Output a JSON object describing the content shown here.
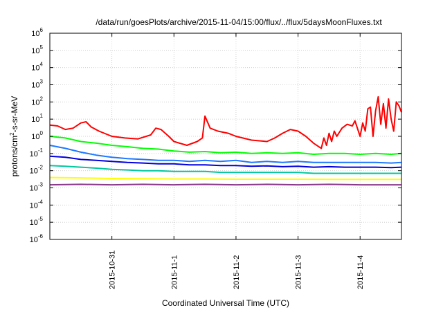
{
  "chart_data": {
    "type": "line",
    "title": "/data/run/goesPlots/archive/2015-11-04/15:00/flux/../flux/5daysMoonFluxes.txt",
    "xlabel": "Coordinated Universal Time (UTC)",
    "ylabel": {
      "base": "protons/cm",
      "sup": "2",
      "rest": "-s-sr-MeV"
    },
    "yscale": "log",
    "ylim": [
      1e-06,
      1000000.0
    ],
    "y_ticks": [
      {
        "base": "10",
        "exp": "-6",
        "value": 1e-06
      },
      {
        "base": "10",
        "exp": "-5",
        "value": 1e-05
      },
      {
        "base": "10",
        "exp": "-4",
        "value": 0.0001
      },
      {
        "base": "10",
        "exp": "-3",
        "value": 0.001
      },
      {
        "base": "10",
        "exp": "-2",
        "value": 0.01
      },
      {
        "base": "10",
        "exp": "-1",
        "value": 0.1
      },
      {
        "base": "10",
        "exp": "0",
        "value": 1
      },
      {
        "base": "10",
        "exp": "1",
        "value": 10
      },
      {
        "base": "10",
        "exp": "2",
        "value": 100
      },
      {
        "base": "10",
        "exp": "3",
        "value": 1000
      },
      {
        "base": "10",
        "exp": "4",
        "value": 10000
      },
      {
        "base": "10",
        "exp": "5",
        "value": 100000
      },
      {
        "base": "10",
        "exp": "6",
        "value": 1000000
      }
    ],
    "xlim": [
      "2015-10-30 00:00",
      "2015-11-04 16:00"
    ],
    "x_ticks": [
      {
        "label": "2015-10-31",
        "value": "2015-10-31 00:00"
      },
      {
        "label": "2015-11-1",
        "value": "2015-11-01 00:00"
      },
      {
        "label": "2015-11-2",
        "value": "2015-11-02 00:00"
      },
      {
        "label": "2015-11-3",
        "value": "2015-11-03 00:00"
      },
      {
        "label": "2015-11-4",
        "value": "2015-11-04 00:00"
      }
    ],
    "grid": true,
    "legend": "none",
    "series": [
      {
        "color": "#ff0000",
        "points": [
          [
            "2015-10-30 00:00",
            4.5
          ],
          [
            "2015-10-30 03:00",
            4.0
          ],
          [
            "2015-10-30 06:00",
            2.5
          ],
          [
            "2015-10-30 09:00",
            3.0
          ],
          [
            "2015-10-30 12:00",
            6.0
          ],
          [
            "2015-10-30 14:00",
            7.0
          ],
          [
            "2015-10-30 16:00",
            3.5
          ],
          [
            "2015-10-30 19:00",
            2.0
          ],
          [
            "2015-10-31 00:00",
            1.0
          ],
          [
            "2015-10-31 05:00",
            0.8
          ],
          [
            "2015-10-31 10:00",
            0.7
          ],
          [
            "2015-10-31 15:00",
            1.2
          ],
          [
            "2015-10-31 17:00",
            3.0
          ],
          [
            "2015-10-31 19:00",
            2.5
          ],
          [
            "2015-10-31 22:00",
            1.0
          ],
          [
            "2015-11-01 00:00",
            0.5
          ],
          [
            "2015-11-01 05:00",
            0.3
          ],
          [
            "2015-11-01 09:00",
            0.5
          ],
          [
            "2015-11-01 11:00",
            0.8
          ],
          [
            "2015-11-01 12:00",
            15.0
          ],
          [
            "2015-11-01 14:00",
            3.0
          ],
          [
            "2015-11-01 17:00",
            2.0
          ],
          [
            "2015-11-01 21:00",
            1.5
          ],
          [
            "2015-11-02 00:00",
            1.0
          ],
          [
            "2015-11-02 06:00",
            0.6
          ],
          [
            "2015-11-02 12:00",
            0.5
          ],
          [
            "2015-11-02 15:00",
            0.8
          ],
          [
            "2015-11-02 18:00",
            1.5
          ],
          [
            "2015-11-02 21:00",
            2.5
          ],
          [
            "2015-11-03 00:00",
            2.0
          ],
          [
            "2015-11-03 03:00",
            1.0
          ],
          [
            "2015-11-03 06:00",
            0.4
          ],
          [
            "2015-11-03 09:00",
            0.2
          ],
          [
            "2015-11-03 10:00",
            0.8
          ],
          [
            "2015-11-03 11:00",
            0.3
          ],
          [
            "2015-11-03 12:00",
            1.5
          ],
          [
            "2015-11-03 13:00",
            0.5
          ],
          [
            "2015-11-03 14:00",
            2.0
          ],
          [
            "2015-11-03 15:00",
            1.0
          ],
          [
            "2015-11-03 17:00",
            3.0
          ],
          [
            "2015-11-03 19:00",
            5.0
          ],
          [
            "2015-11-03 21:00",
            4.0
          ],
          [
            "2015-11-03 22:00",
            8.0
          ],
          [
            "2015-11-04 00:00",
            1.0
          ],
          [
            "2015-11-04 01:00",
            6.0
          ],
          [
            "2015-11-04 02:00",
            2.0
          ],
          [
            "2015-11-04 03:00",
            40.0
          ],
          [
            "2015-11-04 04:00",
            50.0
          ],
          [
            "2015-11-04 05:00",
            1.0
          ],
          [
            "2015-11-04 06:00",
            30.0
          ],
          [
            "2015-11-04 07:00",
            200.0
          ],
          [
            "2015-11-04 08:00",
            5.0
          ],
          [
            "2015-11-04 09:00",
            80.0
          ],
          [
            "2015-11-04 10:00",
            3.0
          ],
          [
            "2015-11-04 11:00",
            150.0
          ],
          [
            "2015-11-04 12:00",
            10.0
          ],
          [
            "2015-11-04 13:00",
            2.0
          ],
          [
            "2015-11-04 14:00",
            100.0
          ],
          [
            "2015-11-04 15:00",
            60.0
          ],
          [
            "2015-11-04 16:00",
            25.0
          ]
        ]
      },
      {
        "color": "#00ff00",
        "points": [
          [
            "2015-10-30 00:00",
            1.0
          ],
          [
            "2015-10-30 06:00",
            0.8
          ],
          [
            "2015-10-30 12:00",
            0.5
          ],
          [
            "2015-10-30 18:00",
            0.4
          ],
          [
            "2015-10-31 00:00",
            0.3
          ],
          [
            "2015-10-31 06:00",
            0.25
          ],
          [
            "2015-10-31 12:00",
            0.2
          ],
          [
            "2015-10-31 18:00",
            0.18
          ],
          [
            "2015-11-01 00:00",
            0.14
          ],
          [
            "2015-11-01 06:00",
            0.12
          ],
          [
            "2015-11-01 12:00",
            0.13
          ],
          [
            "2015-11-01 18:00",
            0.11
          ],
          [
            "2015-11-02 00:00",
            0.12
          ],
          [
            "2015-11-02 06:00",
            0.1
          ],
          [
            "2015-11-02 12:00",
            0.11
          ],
          [
            "2015-11-02 18:00",
            0.1
          ],
          [
            "2015-11-03 00:00",
            0.11
          ],
          [
            "2015-11-03 06:00",
            0.09
          ],
          [
            "2015-11-03 12:00",
            0.1
          ],
          [
            "2015-11-03 18:00",
            0.1
          ],
          [
            "2015-11-04 00:00",
            0.09
          ],
          [
            "2015-11-04 06:00",
            0.1
          ],
          [
            "2015-11-04 12:00",
            0.09
          ],
          [
            "2015-11-04 16:00",
            0.1
          ]
        ]
      },
      {
        "color": "#1e78ff",
        "points": [
          [
            "2015-10-30 00:00",
            0.3
          ],
          [
            "2015-10-30 06:00",
            0.2
          ],
          [
            "2015-10-30 12:00",
            0.12
          ],
          [
            "2015-10-30 18:00",
            0.08
          ],
          [
            "2015-10-31 00:00",
            0.06
          ],
          [
            "2015-10-31 06:00",
            0.05
          ],
          [
            "2015-10-31 12:00",
            0.045
          ],
          [
            "2015-10-31 18:00",
            0.04
          ],
          [
            "2015-11-01 00:00",
            0.04
          ],
          [
            "2015-11-01 06:00",
            0.035
          ],
          [
            "2015-11-01 12:00",
            0.04
          ],
          [
            "2015-11-01 18:00",
            0.035
          ],
          [
            "2015-11-02 00:00",
            0.04
          ],
          [
            "2015-11-02 06:00",
            0.03
          ],
          [
            "2015-11-02 12:00",
            0.035
          ],
          [
            "2015-11-02 18:00",
            0.03
          ],
          [
            "2015-11-03 00:00",
            0.035
          ],
          [
            "2015-11-03 06:00",
            0.03
          ],
          [
            "2015-11-03 12:00",
            0.03
          ],
          [
            "2015-11-03 18:00",
            0.03
          ],
          [
            "2015-11-04 00:00",
            0.03
          ],
          [
            "2015-11-04 06:00",
            0.03
          ],
          [
            "2015-11-04 12:00",
            0.028
          ],
          [
            "2015-11-04 16:00",
            0.03
          ]
        ]
      },
      {
        "color": "#0000e0",
        "points": [
          [
            "2015-10-30 00:00",
            0.07
          ],
          [
            "2015-10-30 06:00",
            0.06
          ],
          [
            "2015-10-30 12:00",
            0.045
          ],
          [
            "2015-10-30 18:00",
            0.04
          ],
          [
            "2015-10-31 00:00",
            0.035
          ],
          [
            "2015-10-31 06:00",
            0.03
          ],
          [
            "2015-10-31 12:00",
            0.028
          ],
          [
            "2015-10-31 18:00",
            0.025
          ],
          [
            "2015-11-01 00:00",
            0.025
          ],
          [
            "2015-11-01 06:00",
            0.022
          ],
          [
            "2015-11-01 12:00",
            0.022
          ],
          [
            "2015-11-01 18:00",
            0.02
          ],
          [
            "2015-11-02 00:00",
            0.02
          ],
          [
            "2015-11-02 06:00",
            0.018
          ],
          [
            "2015-11-02 12:00",
            0.019
          ],
          [
            "2015-11-02 18:00",
            0.017
          ],
          [
            "2015-11-03 00:00",
            0.018
          ],
          [
            "2015-11-03 06:00",
            0.016
          ],
          [
            "2015-11-03 12:00",
            0.017
          ],
          [
            "2015-11-03 18:00",
            0.016
          ],
          [
            "2015-11-04 00:00",
            0.016
          ],
          [
            "2015-11-04 06:00",
            0.016
          ],
          [
            "2015-11-04 12:00",
            0.015
          ],
          [
            "2015-11-04 16:00",
            0.016
          ]
        ]
      },
      {
        "color": "#00c8a0",
        "points": [
          [
            "2015-10-30 00:00",
            0.02
          ],
          [
            "2015-10-30 06:00",
            0.018
          ],
          [
            "2015-10-30 12:00",
            0.016
          ],
          [
            "2015-10-30 18:00",
            0.014
          ],
          [
            "2015-10-31 00:00",
            0.012
          ],
          [
            "2015-10-31 06:00",
            0.011
          ],
          [
            "2015-10-31 12:00",
            0.01
          ],
          [
            "2015-10-31 18:00",
            0.01
          ],
          [
            "2015-11-01 00:00",
            0.009
          ],
          [
            "2015-11-01 06:00",
            0.009
          ],
          [
            "2015-11-01 12:00",
            0.009
          ],
          [
            "2015-11-01 18:00",
            0.008
          ],
          [
            "2015-11-02 00:00",
            0.008
          ],
          [
            "2015-11-02 06:00",
            0.008
          ],
          [
            "2015-11-02 12:00",
            0.008
          ],
          [
            "2015-11-02 18:00",
            0.008
          ],
          [
            "2015-11-03 00:00",
            0.008
          ],
          [
            "2015-11-03 06:00",
            0.007
          ],
          [
            "2015-11-03 12:00",
            0.007
          ],
          [
            "2015-11-03 18:00",
            0.007
          ],
          [
            "2015-11-04 00:00",
            0.007
          ],
          [
            "2015-11-04 06:00",
            0.007
          ],
          [
            "2015-11-04 12:00",
            0.007
          ],
          [
            "2015-11-04 16:00",
            0.007
          ]
        ]
      },
      {
        "color": "#ffff00",
        "points": [
          [
            "2015-10-30 00:00",
            0.004
          ],
          [
            "2015-10-30 12:00",
            0.0038
          ],
          [
            "2015-10-31 00:00",
            0.0035
          ],
          [
            "2015-10-31 12:00",
            0.0034
          ],
          [
            "2015-11-01 00:00",
            0.0033
          ],
          [
            "2015-11-01 12:00",
            0.0033
          ],
          [
            "2015-11-02 00:00",
            0.0032
          ],
          [
            "2015-11-02 12:00",
            0.0032
          ],
          [
            "2015-11-03 00:00",
            0.0032
          ],
          [
            "2015-11-03 12:00",
            0.0031
          ],
          [
            "2015-11-04 00:00",
            0.0031
          ],
          [
            "2015-11-04 16:00",
            0.0031
          ]
        ]
      },
      {
        "color": "#8b3a8b",
        "points": [
          [
            "2015-10-30 00:00",
            0.0015
          ],
          [
            "2015-10-30 12:00",
            0.0016
          ],
          [
            "2015-10-31 00:00",
            0.0015
          ],
          [
            "2015-10-31 12:00",
            0.0016
          ],
          [
            "2015-11-01 00:00",
            0.0015
          ],
          [
            "2015-11-01 12:00",
            0.0016
          ],
          [
            "2015-11-02 00:00",
            0.0015
          ],
          [
            "2015-11-02 12:00",
            0.0016
          ],
          [
            "2015-11-03 00:00",
            0.0015
          ],
          [
            "2015-11-03 12:00",
            0.0016
          ],
          [
            "2015-11-04 00:00",
            0.0015
          ],
          [
            "2015-11-04 16:00",
            0.0015
          ]
        ]
      }
    ]
  }
}
